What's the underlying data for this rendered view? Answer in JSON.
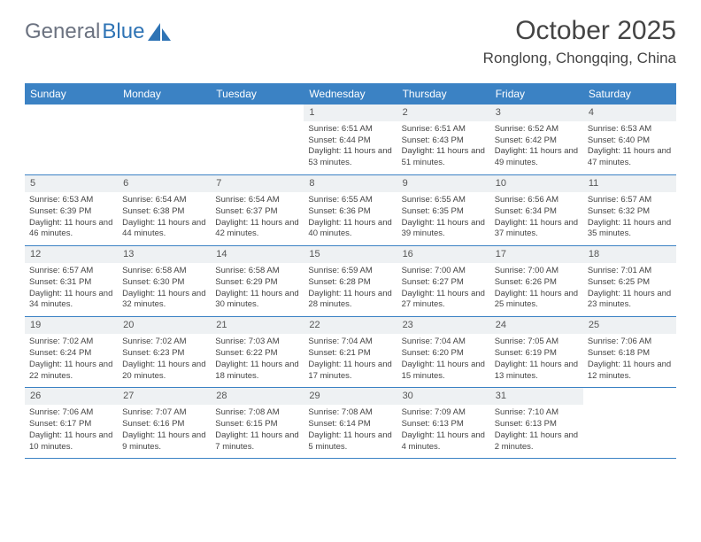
{
  "logo": {
    "text1": "General",
    "text2": "Blue"
  },
  "title": "October 2025",
  "location": "Ronglong, Chongqing, China",
  "colors": {
    "header_bg": "#3b82c4",
    "header_text": "#ffffff",
    "daynum_bg": "#eef1f3",
    "border": "#3b82c4",
    "text": "#444444",
    "logo_gray": "#6b7280",
    "logo_blue": "#2f74b5"
  },
  "weekdays": [
    "Sunday",
    "Monday",
    "Tuesday",
    "Wednesday",
    "Thursday",
    "Friday",
    "Saturday"
  ],
  "weeks": [
    [
      null,
      null,
      null,
      {
        "d": "1",
        "sr": "6:51 AM",
        "ss": "6:44 PM",
        "dl": "11 hours and 53 minutes."
      },
      {
        "d": "2",
        "sr": "6:51 AM",
        "ss": "6:43 PM",
        "dl": "11 hours and 51 minutes."
      },
      {
        "d": "3",
        "sr": "6:52 AM",
        "ss": "6:42 PM",
        "dl": "11 hours and 49 minutes."
      },
      {
        "d": "4",
        "sr": "6:53 AM",
        "ss": "6:40 PM",
        "dl": "11 hours and 47 minutes."
      }
    ],
    [
      {
        "d": "5",
        "sr": "6:53 AM",
        "ss": "6:39 PM",
        "dl": "11 hours and 46 minutes."
      },
      {
        "d": "6",
        "sr": "6:54 AM",
        "ss": "6:38 PM",
        "dl": "11 hours and 44 minutes."
      },
      {
        "d": "7",
        "sr": "6:54 AM",
        "ss": "6:37 PM",
        "dl": "11 hours and 42 minutes."
      },
      {
        "d": "8",
        "sr": "6:55 AM",
        "ss": "6:36 PM",
        "dl": "11 hours and 40 minutes."
      },
      {
        "d": "9",
        "sr": "6:55 AM",
        "ss": "6:35 PM",
        "dl": "11 hours and 39 minutes."
      },
      {
        "d": "10",
        "sr": "6:56 AM",
        "ss": "6:34 PM",
        "dl": "11 hours and 37 minutes."
      },
      {
        "d": "11",
        "sr": "6:57 AM",
        "ss": "6:32 PM",
        "dl": "11 hours and 35 minutes."
      }
    ],
    [
      {
        "d": "12",
        "sr": "6:57 AM",
        "ss": "6:31 PM",
        "dl": "11 hours and 34 minutes."
      },
      {
        "d": "13",
        "sr": "6:58 AM",
        "ss": "6:30 PM",
        "dl": "11 hours and 32 minutes."
      },
      {
        "d": "14",
        "sr": "6:58 AM",
        "ss": "6:29 PM",
        "dl": "11 hours and 30 minutes."
      },
      {
        "d": "15",
        "sr": "6:59 AM",
        "ss": "6:28 PM",
        "dl": "11 hours and 28 minutes."
      },
      {
        "d": "16",
        "sr": "7:00 AM",
        "ss": "6:27 PM",
        "dl": "11 hours and 27 minutes."
      },
      {
        "d": "17",
        "sr": "7:00 AM",
        "ss": "6:26 PM",
        "dl": "11 hours and 25 minutes."
      },
      {
        "d": "18",
        "sr": "7:01 AM",
        "ss": "6:25 PM",
        "dl": "11 hours and 23 minutes."
      }
    ],
    [
      {
        "d": "19",
        "sr": "7:02 AM",
        "ss": "6:24 PM",
        "dl": "11 hours and 22 minutes."
      },
      {
        "d": "20",
        "sr": "7:02 AM",
        "ss": "6:23 PM",
        "dl": "11 hours and 20 minutes."
      },
      {
        "d": "21",
        "sr": "7:03 AM",
        "ss": "6:22 PM",
        "dl": "11 hours and 18 minutes."
      },
      {
        "d": "22",
        "sr": "7:04 AM",
        "ss": "6:21 PM",
        "dl": "11 hours and 17 minutes."
      },
      {
        "d": "23",
        "sr": "7:04 AM",
        "ss": "6:20 PM",
        "dl": "11 hours and 15 minutes."
      },
      {
        "d": "24",
        "sr": "7:05 AM",
        "ss": "6:19 PM",
        "dl": "11 hours and 13 minutes."
      },
      {
        "d": "25",
        "sr": "7:06 AM",
        "ss": "6:18 PM",
        "dl": "11 hours and 12 minutes."
      }
    ],
    [
      {
        "d": "26",
        "sr": "7:06 AM",
        "ss": "6:17 PM",
        "dl": "11 hours and 10 minutes."
      },
      {
        "d": "27",
        "sr": "7:07 AM",
        "ss": "6:16 PM",
        "dl": "11 hours and 9 minutes."
      },
      {
        "d": "28",
        "sr": "7:08 AM",
        "ss": "6:15 PM",
        "dl": "11 hours and 7 minutes."
      },
      {
        "d": "29",
        "sr": "7:08 AM",
        "ss": "6:14 PM",
        "dl": "11 hours and 5 minutes."
      },
      {
        "d": "30",
        "sr": "7:09 AM",
        "ss": "6:13 PM",
        "dl": "11 hours and 4 minutes."
      },
      {
        "d": "31",
        "sr": "7:10 AM",
        "ss": "6:13 PM",
        "dl": "11 hours and 2 minutes."
      },
      null
    ]
  ],
  "labels": {
    "sunrise": "Sunrise:",
    "sunset": "Sunset:",
    "daylight": "Daylight:"
  }
}
